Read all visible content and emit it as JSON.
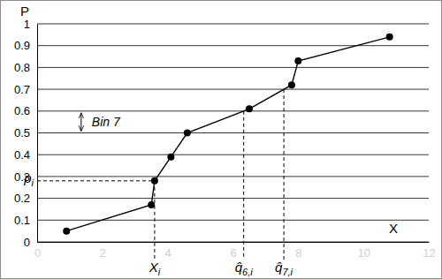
{
  "chart_data": {
    "type": "line",
    "x_label": "X",
    "y_label": "P",
    "x": [
      0.9,
      3.5,
      3.6,
      4.1,
      4.6,
      6.5,
      7.8,
      8.0,
      10.8
    ],
    "values": [
      0.05,
      0.17,
      0.28,
      0.39,
      0.5,
      0.61,
      0.72,
      0.83,
      0.94
    ],
    "color": "#000000",
    "marker": "circle",
    "line_style": "solid",
    "xlim": [
      0,
      12
    ],
    "xticks": [
      0,
      2,
      4,
      6,
      8,
      10,
      12
    ],
    "ylim": [
      0,
      1
    ],
    "yticks": [
      0,
      0.1,
      0.2,
      0.3,
      0.4,
      0.5,
      0.6,
      0.7,
      0.8,
      0.9,
      1
    ],
    "grid": true,
    "x_markers": [
      {
        "label": "X",
        "subscript": "i",
        "x": 3.6,
        "y": 0.28
      },
      {
        "label": "q̂",
        "subscript": "6,i",
        "x": 6.33,
        "y": 0.6
      },
      {
        "label": "q̂",
        "subscript": "7,i",
        "x": 7.56,
        "y": 0.7
      }
    ],
    "y_markers": [
      {
        "label": "p",
        "subscript": "i",
        "x": 3.6,
        "y": 0.28
      }
    ],
    "bands": [
      {
        "label": "Bin 7",
        "x": 1.35,
        "y_from": 0.5,
        "y_to": 0.6
      }
    ]
  }
}
